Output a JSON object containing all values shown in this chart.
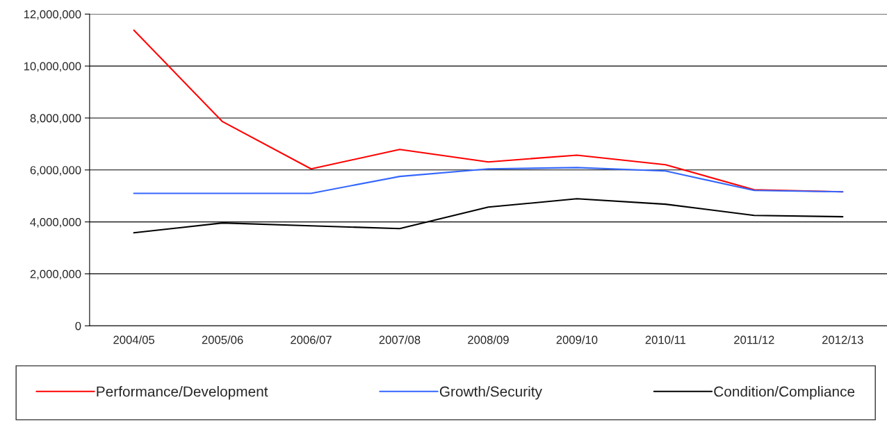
{
  "chart_data": {
    "type": "line",
    "categories": [
      "2004/05",
      "2005/06",
      "2006/07",
      "2007/08",
      "2008/09",
      "2009/10",
      "2010/11",
      "2011/12",
      "2012/13"
    ],
    "series": [
      {
        "name": "Performance/Development",
        "color": "#ff0000",
        "values": [
          11380000,
          7860000,
          6040000,
          6790000,
          6310000,
          6570000,
          6200000,
          5240000,
          5160000
        ]
      },
      {
        "name": "Growth/Security",
        "color": "#3366ff",
        "values": [
          5100000,
          5100000,
          5100000,
          5750000,
          6040000,
          6090000,
          5960000,
          5210000,
          5160000
        ]
      },
      {
        "name": "Condition/Compliance",
        "color": "#000000",
        "values": [
          3580000,
          3960000,
          3850000,
          3740000,
          4570000,
          4890000,
          4680000,
          4250000,
          4200000
        ]
      }
    ],
    "ylim": [
      0,
      12000000
    ],
    "yticks": [
      {
        "value": 0,
        "label": "0"
      },
      {
        "value": 2000000,
        "label": "2,000,000"
      },
      {
        "value": 4000000,
        "label": "4,000,000"
      },
      {
        "value": 6000000,
        "label": "6,000,000"
      },
      {
        "value": 8000000,
        "label": "8,000,000"
      },
      {
        "value": 10000000,
        "label": "10,000,000"
      },
      {
        "value": 12000000,
        "label": "12,000,000"
      }
    ],
    "grid": "y",
    "legend": "bottom",
    "marker": "none",
    "line_style": "solid"
  }
}
